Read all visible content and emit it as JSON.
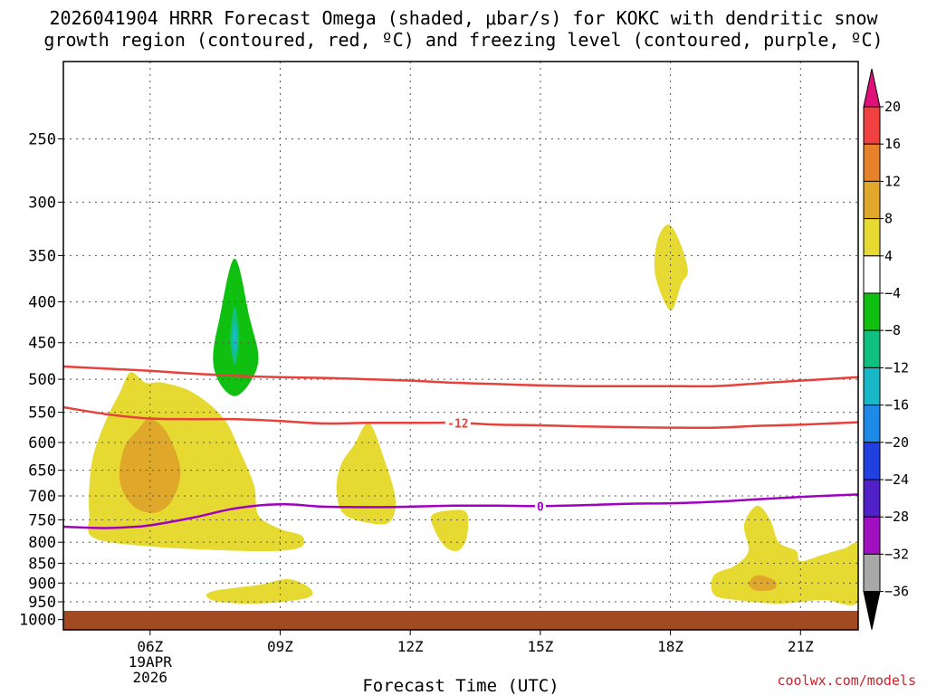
{
  "title_lines": [
    "2026041904 HRRR Forecast Omega (shaded, μbar/s) for KOKC with dendritic snow",
    "growth region (contoured, red, ºC) and freezing level (contoured, purple, ºC)"
  ],
  "watermark": "coolwx.com/models",
  "chart_data": {
    "type": "contour",
    "xlabel": "Forecast Time (UTC)",
    "ylabel": "",
    "y_axis": {
      "scale": "log",
      "reversed": true,
      "range_hPa": [
        200,
        1030
      ]
    },
    "x_axis": {
      "range_hours_utc": [
        4.0,
        22.33
      ]
    },
    "yticks": [
      250,
      300,
      350,
      400,
      450,
      500,
      550,
      600,
      650,
      700,
      750,
      800,
      850,
      900,
      950,
      1000
    ],
    "xticks": [
      {
        "label": "06Z",
        "hour": 6,
        "sublabels": [
          "19APR",
          "2026"
        ]
      },
      {
        "label": "09Z",
        "hour": 9
      },
      {
        "label": "12Z",
        "hour": 12
      },
      {
        "label": "15Z",
        "hour": 15
      },
      {
        "label": "18Z",
        "hour": 18
      },
      {
        "label": "21Z",
        "hour": 21
      }
    ],
    "grid": true,
    "colorbar": {
      "levels": [
        "20",
        "16",
        "12",
        "8",
        "4",
        "−4",
        "−8",
        "−12",
        "−16",
        "−20",
        "−24",
        "−28",
        "−32",
        "−36"
      ],
      "bins": [
        {
          "range": "> 20",
          "color": "#e0107a"
        },
        {
          "range": "16 to 20",
          "color": "#f04040"
        },
        {
          "range": "12 to 16",
          "color": "#e8822a"
        },
        {
          "range": "8 to 12",
          "color": "#e0a82a"
        },
        {
          "range": "4 to 8",
          "color": "#e6da32"
        },
        {
          "range": "-4 to 4",
          "color": "#ffffff"
        },
        {
          "range": "-8 to -4",
          "color": "#10c010"
        },
        {
          "range": "-12 to -8",
          "color": "#10c080"
        },
        {
          "range": "-16 to -12",
          "color": "#18b8c8"
        },
        {
          "range": "-20 to -16",
          "color": "#1e8ae8"
        },
        {
          "range": "-24 to -20",
          "color": "#2040e0"
        },
        {
          "range": "-28 to -24",
          "color": "#5020c8"
        },
        {
          "range": "-32 to -28",
          "color": "#a010c0"
        },
        {
          "range": "-36 to -32",
          "color": "#a8a8a8"
        },
        {
          "range": "< -36",
          "color": "#000000"
        }
      ]
    },
    "omega_regions": [
      {
        "value_range": "4 to 8",
        "color": "#e6da32",
        "points": [
          [
            5.55,
            490
          ],
          [
            5.9,
            505
          ],
          [
            6.3,
            505
          ],
          [
            7.0,
            520
          ],
          [
            7.7,
            560
          ],
          [
            8.1,
            620
          ],
          [
            8.4,
            680
          ],
          [
            8.5,
            740
          ],
          [
            9.0,
            770
          ],
          [
            9.5,
            785
          ],
          [
            9.5,
            810
          ],
          [
            9.0,
            820
          ],
          [
            8.0,
            820
          ],
          [
            6.0,
            810
          ],
          [
            4.7,
            790
          ],
          [
            4.6,
            740
          ],
          [
            4.6,
            680
          ],
          [
            4.7,
            620
          ],
          [
            5.0,
            560
          ],
          [
            5.3,
            520
          ]
        ]
      },
      {
        "value_range": "8 to 12",
        "color": "#e0a82a",
        "points": [
          [
            6.0,
            560
          ],
          [
            6.4,
            585
          ],
          [
            6.7,
            650
          ],
          [
            6.5,
            710
          ],
          [
            6.1,
            735
          ],
          [
            5.6,
            720
          ],
          [
            5.3,
            670
          ],
          [
            5.4,
            610
          ],
          [
            5.7,
            580
          ]
        ]
      },
      {
        "value_range": "-8 to -4",
        "color": "#10c010",
        "points": [
          [
            7.95,
            353
          ],
          [
            8.3,
            420
          ],
          [
            8.5,
            470
          ],
          [
            8.3,
            505
          ],
          [
            7.95,
            525
          ],
          [
            7.6,
            505
          ],
          [
            7.45,
            470
          ],
          [
            7.6,
            420
          ]
        ]
      },
      {
        "value_range": "-12 to -8",
        "color": "#10c080",
        "points": [
          [
            7.95,
            405
          ],
          [
            8.05,
            445
          ],
          [
            7.95,
            480
          ],
          [
            7.85,
            445
          ]
        ]
      },
      {
        "value_range": "-16 to -12",
        "color": "#18b8c8",
        "points": [
          [
            7.95,
            425
          ],
          [
            8.0,
            445
          ],
          [
            7.95,
            465
          ],
          [
            7.9,
            445
          ]
        ]
      },
      {
        "value_range": "4 to 8",
        "color": "#e6da32",
        "points": [
          [
            11.05,
            568
          ],
          [
            11.4,
            630
          ],
          [
            11.65,
            700
          ],
          [
            11.6,
            745
          ],
          [
            11.3,
            760
          ],
          [
            10.5,
            740
          ],
          [
            10.3,
            690
          ],
          [
            10.4,
            640
          ],
          [
            10.7,
            605
          ]
        ]
      },
      {
        "value_range": "4 to 8",
        "color": "#e6da32",
        "points": [
          [
            12.9,
            730
          ],
          [
            13.3,
            735
          ],
          [
            13.3,
            790
          ],
          [
            13.1,
            820
          ],
          [
            12.8,
            810
          ],
          [
            12.55,
            770
          ],
          [
            12.5,
            740
          ]
        ]
      },
      {
        "value_range": "4 to 8",
        "color": "#e6da32",
        "points": [
          [
            17.95,
            320
          ],
          [
            18.2,
            335
          ],
          [
            18.4,
            365
          ],
          [
            18.25,
            380
          ],
          [
            18.0,
            410
          ],
          [
            17.65,
            370
          ],
          [
            17.7,
            335
          ]
        ]
      },
      {
        "value_range": "4 to 8",
        "color": "#e6da32",
        "points": [
          [
            7.5,
            920
          ],
          [
            8.5,
            905
          ],
          [
            9.2,
            890
          ],
          [
            9.7,
            915
          ],
          [
            9.6,
            940
          ],
          [
            8.5,
            955
          ],
          [
            7.6,
            950
          ],
          [
            7.3,
            935
          ]
        ]
      },
      {
        "value_range": "4 to 8",
        "color": "#e6da32",
        "points": [
          [
            20.0,
            720
          ],
          [
            20.3,
            750
          ],
          [
            20.5,
            800
          ],
          [
            20.9,
            820
          ],
          [
            21.0,
            845
          ],
          [
            21.5,
            830
          ],
          [
            22.0,
            815
          ],
          [
            22.33,
            810
          ],
          [
            22.33,
            950
          ],
          [
            21.5,
            945
          ],
          [
            20.5,
            955
          ],
          [
            19.5,
            945
          ],
          [
            19.0,
            930
          ],
          [
            19.0,
            880
          ],
          [
            19.5,
            855
          ],
          [
            19.8,
            820
          ],
          [
            19.7,
            760
          ]
        ]
      },
      {
        "value_range": "8 to 12",
        "color": "#e0a82a",
        "points": [
          [
            20.0,
            880
          ],
          [
            20.4,
            893
          ],
          [
            20.4,
            915
          ],
          [
            20.0,
            920
          ],
          [
            19.8,
            903
          ]
        ]
      }
    ],
    "contours": [
      {
        "name": "-10",
        "color": "#e8403a",
        "label": "",
        "points": [
          [
            4.0,
            482
          ],
          [
            5.0,
            485
          ],
          [
            6.0,
            488
          ],
          [
            7.0,
            492
          ],
          [
            8.0,
            495
          ],
          [
            9.0,
            497
          ],
          [
            10.0,
            498
          ],
          [
            11.0,
            500
          ],
          [
            12.0,
            502
          ],
          [
            13.0,
            505
          ],
          [
            14.0,
            507
          ],
          [
            15.0,
            509
          ],
          [
            16.0,
            510
          ],
          [
            17.0,
            510
          ],
          [
            18.0,
            510
          ],
          [
            19.0,
            510
          ],
          [
            20.0,
            506
          ],
          [
            21.0,
            502
          ],
          [
            22.33,
            497
          ]
        ]
      },
      {
        "name": "-12",
        "color": "#e8403a",
        "label": "-12",
        "label_hour": 13.1,
        "points": [
          [
            4.0,
            542
          ],
          [
            5.0,
            553
          ],
          [
            6.0,
            560
          ],
          [
            7.0,
            561
          ],
          [
            8.0,
            561
          ],
          [
            9.0,
            564
          ],
          [
            10.0,
            568
          ],
          [
            11.0,
            567
          ],
          [
            12.0,
            567
          ],
          [
            13.1,
            567
          ],
          [
            14.0,
            570
          ],
          [
            15.0,
            571
          ],
          [
            16.0,
            573
          ],
          [
            17.0,
            574
          ],
          [
            18.0,
            575
          ],
          [
            19.0,
            575
          ],
          [
            20.0,
            572
          ],
          [
            21.0,
            570
          ],
          [
            22.33,
            566
          ]
        ]
      },
      {
        "name": "0",
        "color": "#a000c0",
        "label": "0",
        "label_hour": 15.0,
        "points": [
          [
            4.0,
            765
          ],
          [
            4.5,
            767
          ],
          [
            5.0,
            768
          ],
          [
            5.5,
            766
          ],
          [
            6.0,
            762
          ],
          [
            7.0,
            745
          ],
          [
            8.0,
            725
          ],
          [
            9.0,
            717
          ],
          [
            10.0,
            722
          ],
          [
            11.0,
            723
          ],
          [
            12.0,
            722
          ],
          [
            13.0,
            720
          ],
          [
            14.0,
            720
          ],
          [
            15.0,
            721
          ],
          [
            16.0,
            719
          ],
          [
            17.0,
            716
          ],
          [
            18.0,
            715
          ],
          [
            19.0,
            712
          ],
          [
            20.0,
            707
          ],
          [
            21.0,
            702
          ],
          [
            22.33,
            697
          ]
        ]
      }
    ],
    "surface": {
      "color": "#a24a22",
      "pressure_hPa": 975
    }
  }
}
